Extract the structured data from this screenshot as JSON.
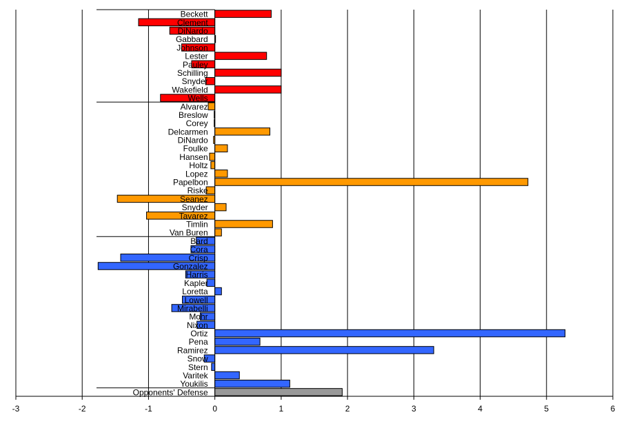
{
  "chart_data": {
    "type": "bar",
    "orientation": "horizontal",
    "xlim": [
      -3,
      6
    ],
    "xticks": [
      "-3",
      "-2",
      "-1",
      "0",
      "1",
      "2",
      "3",
      "4",
      "5",
      "6"
    ],
    "grid": "vertical",
    "legend": "none",
    "colors": {
      "group1": "#ff0000",
      "group2": "#ff9900",
      "group3": "#3366ff",
      "group4": "#999999"
    },
    "groups": [
      {
        "color_key": "group1",
        "items": [
          {
            "label": "Beckett",
            "value": 0.85
          },
          {
            "label": "Clement",
            "value": -1.15
          },
          {
            "label": "DiNardo",
            "value": -0.68
          },
          {
            "label": "Gabbard",
            "value": 0.01
          },
          {
            "label": "Johnson",
            "value": -0.5
          },
          {
            "label": "Lester",
            "value": 0.78
          },
          {
            "label": "Pauley",
            "value": -0.35
          },
          {
            "label": "Schilling",
            "value": 1.0
          },
          {
            "label": "Snyder",
            "value": -0.14
          },
          {
            "label": "Wakefield",
            "value": 1.0
          },
          {
            "label": "Wells",
            "value": -0.82
          }
        ]
      },
      {
        "color_key": "group2",
        "items": [
          {
            "label": "Alvarez",
            "value": -0.1
          },
          {
            "label": "Breslow",
            "value": -0.01
          },
          {
            "label": "Corey",
            "value": -0.01
          },
          {
            "label": "Delcarmen",
            "value": 0.83
          },
          {
            "label": "DiNardo",
            "value": -0.02
          },
          {
            "label": "Foulke",
            "value": 0.19
          },
          {
            "label": "Hansen",
            "value": -0.08
          },
          {
            "label": "Holtz",
            "value": -0.06
          },
          {
            "label": "Lopez",
            "value": 0.19
          },
          {
            "label": "Papelbon",
            "value": 4.72
          },
          {
            "label": "Riske",
            "value": -0.13
          },
          {
            "label": "Seanez",
            "value": -1.47
          },
          {
            "label": "Snyder",
            "value": 0.17
          },
          {
            "label": "Tavarez",
            "value": -1.03
          },
          {
            "label": "Timlin",
            "value": 0.87
          },
          {
            "label": "Van Buren",
            "value": 0.1
          }
        ]
      },
      {
        "color_key": "group3",
        "items": [
          {
            "label": "Bard",
            "value": -0.28
          },
          {
            "label": "Cora",
            "value": -0.36
          },
          {
            "label": "Crisp",
            "value": -1.42
          },
          {
            "label": "Gonzalez",
            "value": -1.76
          },
          {
            "label": "Harris",
            "value": -0.44
          },
          {
            "label": "Kapler",
            "value": -0.12
          },
          {
            "label": "Loretta",
            "value": 0.1
          },
          {
            "label": "Lowell",
            "value": -0.49
          },
          {
            "label": "Mirabelli",
            "value": -0.65
          },
          {
            "label": "Mohr",
            "value": -0.22
          },
          {
            "label": "Nixon",
            "value": -0.27
          },
          {
            "label": "Ortiz",
            "value": 5.28
          },
          {
            "label": "Pena",
            "value": 0.68
          },
          {
            "label": "Ramirez",
            "value": 3.3
          },
          {
            "label": "Snow",
            "value": -0.16
          },
          {
            "label": "Stern",
            "value": -0.05
          },
          {
            "label": "Varitek",
            "value": 0.37
          },
          {
            "label": "Youkilis",
            "value": 1.13
          }
        ]
      },
      {
        "color_key": "group4",
        "items": [
          {
            "label": "Opponents' Defense",
            "value": 1.92
          }
        ]
      }
    ]
  }
}
